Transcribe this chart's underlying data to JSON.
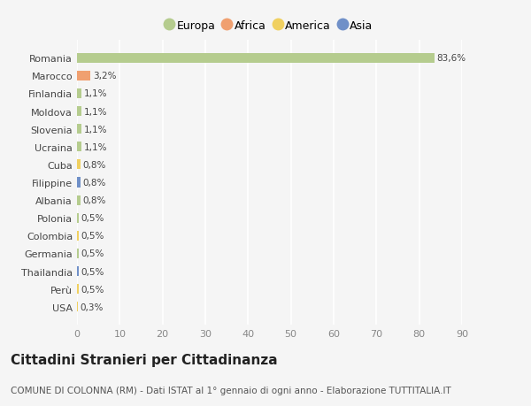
{
  "countries": [
    "Romania",
    "Marocco",
    "Finlandia",
    "Moldova",
    "Slovenia",
    "Ucraina",
    "Cuba",
    "Filippine",
    "Albania",
    "Polonia",
    "Colombia",
    "Germania",
    "Thailandia",
    "Perù",
    "USA"
  ],
  "values": [
    83.6,
    3.2,
    1.1,
    1.1,
    1.1,
    1.1,
    0.8,
    0.8,
    0.8,
    0.5,
    0.5,
    0.5,
    0.5,
    0.5,
    0.3
  ],
  "continents": [
    "Europa",
    "Africa",
    "Europa",
    "Europa",
    "Europa",
    "Europa",
    "America",
    "Asia",
    "Europa",
    "Europa",
    "America",
    "Europa",
    "Asia",
    "America",
    "America"
  ],
  "labels": [
    "83,6%",
    "3,2%",
    "1,1%",
    "1,1%",
    "1,1%",
    "1,1%",
    "0,8%",
    "0,8%",
    "0,8%",
    "0,5%",
    "0,5%",
    "0,5%",
    "0,5%",
    "0,5%",
    "0,3%"
  ],
  "continent_colors": {
    "Europa": "#b5cc8e",
    "Africa": "#f0a070",
    "America": "#f0d060",
    "Asia": "#7090c8"
  },
  "legend_entries": [
    "Europa",
    "Africa",
    "America",
    "Asia"
  ],
  "legend_colors": [
    "#b5cc8e",
    "#f0a070",
    "#f0d060",
    "#7090c8"
  ],
  "title": "Cittadini Stranieri per Cittadinanza",
  "subtitle": "COMUNE DI COLONNA (RM) - Dati ISTAT al 1° gennaio di ogni anno - Elaborazione TUTTITALIA.IT",
  "xlim": [
    0,
    90
  ],
  "xticks": [
    0,
    10,
    20,
    30,
    40,
    50,
    60,
    70,
    80,
    90
  ],
  "background_color": "#f5f5f5",
  "grid_color": "#ffffff",
  "bar_height": 0.55,
  "title_fontsize": 11,
  "subtitle_fontsize": 7.5
}
